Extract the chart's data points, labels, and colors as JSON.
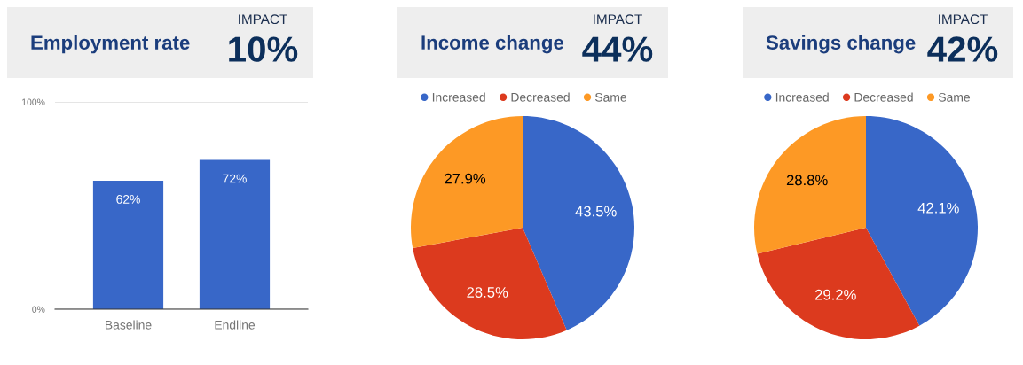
{
  "chart_data": [
    {
      "type": "bar",
      "title": "Employment rate",
      "annotations": [
        "IMPACT",
        "10%"
      ],
      "categories": [
        "Baseline",
        "Endline"
      ],
      "values": [
        62,
        72
      ],
      "color": "#3867c8",
      "ylim": [
        0,
        100
      ],
      "yticks": [
        {
          "value": 0,
          "label": "0%"
        },
        {
          "value": 100,
          "label": "100%"
        }
      ],
      "grid": "y",
      "value_labels": [
        "62%",
        "72%"
      ]
    },
    {
      "type": "pie",
      "title": "Income change",
      "annotations": [
        "IMPACT",
        "44%"
      ],
      "categories": [
        "Increased",
        "Decreased",
        "Same"
      ],
      "values": [
        43.5,
        28.5,
        27.9
      ],
      "colors": [
        "#3867c8",
        "#dc3a1e",
        "#fd9925"
      ],
      "value_labels": [
        "43.5%",
        "28.5%",
        "27.9%"
      ],
      "legend": "top"
    },
    {
      "type": "pie",
      "title": "Savings change",
      "annotations": [
        "IMPACT",
        "42%"
      ],
      "categories": [
        "Increased",
        "Decreased",
        "Same"
      ],
      "values": [
        42.1,
        29.2,
        28.8
      ],
      "colors": [
        "#3867c8",
        "#dc3a1e",
        "#fd9925"
      ],
      "value_labels": [
        "42.1%",
        "29.2%",
        "28.8%"
      ],
      "legend": "top"
    }
  ]
}
